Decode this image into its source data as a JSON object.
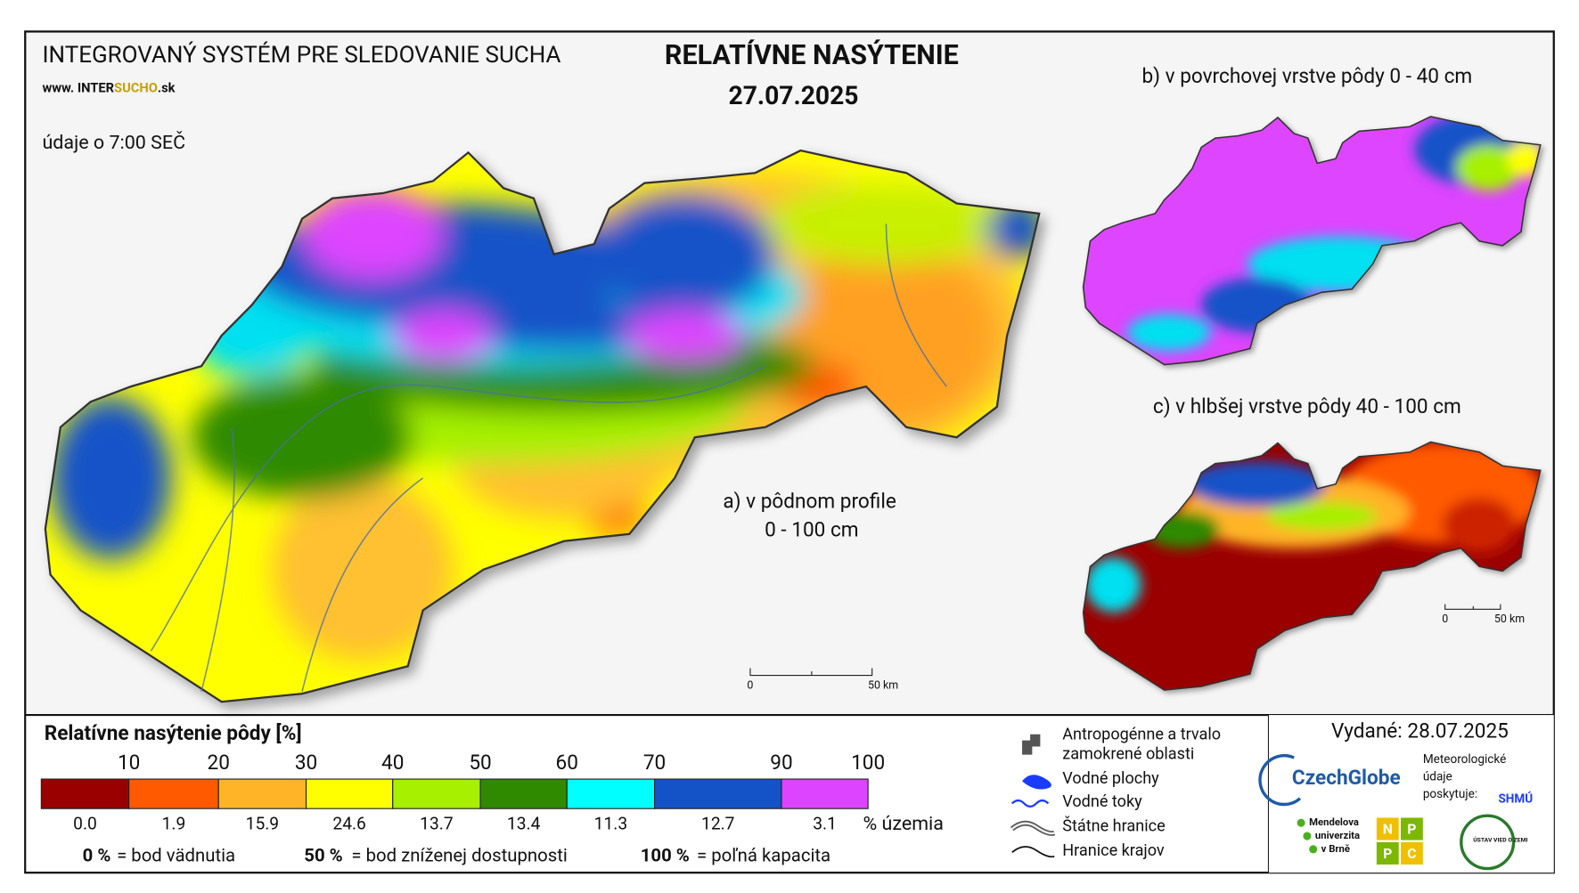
{
  "header": {
    "system": "INTEGROVANÝ SYSTÉM PRE SLEDOVANIE SUCHA",
    "web_prefix": "www. INTER",
    "web_highlight": "SUCHO",
    "web_suffix": ".sk",
    "time_note": "údaje o 7:00 SEČ",
    "title": "RELATÍVNE NASÝTENIE",
    "date": "27.07.2025"
  },
  "maps": {
    "a_label": "a) v pôdnom profile",
    "a_depth": "0 - 100 cm",
    "b_label": "b) v povrchovej vrstve pôdy 0 - 40 cm",
    "c_label": "c) v hlbšej vrstve pôdy 40 - 100 cm",
    "scale_zero": "0",
    "scale_end": "50 km"
  },
  "legend": {
    "title": "Relatívne nasýtenie pôdy [%]",
    "share_unit": "% územia",
    "classes": [
      {
        "upper": "10",
        "color": "#9b0000",
        "share": "0.0"
      },
      {
        "upper": "20",
        "color": "#ff5a00",
        "share": "1.9"
      },
      {
        "upper": "30",
        "color": "#ffb428",
        "share": "15.9"
      },
      {
        "upper": "40",
        "color": "#ffff00",
        "share": "24.6"
      },
      {
        "upper": "50",
        "color": "#a6f000",
        "share": "13.7"
      },
      {
        "upper": "60",
        "color": "#2f8a00",
        "share": "13.4"
      },
      {
        "upper": "70",
        "color": "#00ffff",
        "share": "11.3"
      },
      {
        "upper": "90",
        "color": "#1452c8",
        "share": "12.7"
      },
      {
        "upper": "100",
        "color": "#dd44ff",
        "share": "3.1"
      }
    ],
    "notes": [
      {
        "key": "0 %",
        "text": "= bod vädnutia"
      },
      {
        "key": "50 %",
        "text": "= bod zníženej dostupnosti"
      },
      {
        "key": "100 %",
        "text": "= poľná kapacita"
      }
    ]
  },
  "symbols": [
    [
      "Antropogénne a trvalo",
      "zamokrené oblasti"
    ],
    [
      "Vodné plochy"
    ],
    [
      "Vodné toky"
    ],
    [
      "Štátne hranice"
    ],
    [
      "Hranice krajov"
    ]
  ],
  "issued": "Vydané: 28.07.2025",
  "logos": {
    "czechglobe": "CzechGlobe",
    "meteo": [
      "Meteorologické",
      "údaje",
      "poskytuje:"
    ],
    "shmu": "SHMÚ",
    "mendel": [
      "Mendelova",
      "univerzita",
      "v Brně"
    ],
    "npc": [
      "N",
      "P",
      "P",
      "C"
    ],
    "uvz": "ÚSTAV VIED O ZEMI"
  }
}
